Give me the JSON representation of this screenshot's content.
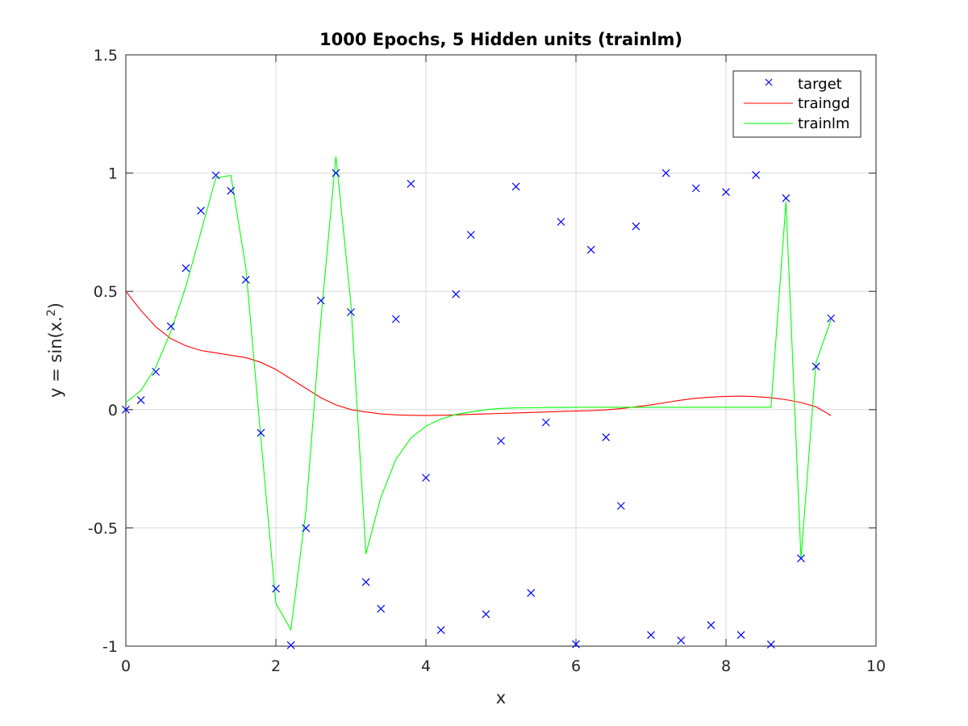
{
  "chart_data": {
    "type": "line",
    "title": "1000 Epochs, 5 Hidden units (trainlm)",
    "xlabel": "x",
    "ylabel": "y = sin(x.^2)",
    "xlim": [
      0,
      10
    ],
    "ylim": [
      -1,
      1.5
    ],
    "xticks": [
      0,
      2,
      4,
      6,
      8,
      10
    ],
    "yticks": [
      -1,
      -0.5,
      0,
      0.5,
      1,
      1.5
    ],
    "xtick_labels": [
      "0",
      "2",
      "4",
      "6",
      "8",
      "10"
    ],
    "ytick_labels": [
      "-1",
      "-0.5",
      "0",
      "0.5",
      "1",
      "1.5"
    ],
    "grid": true,
    "legend_position": "top-right",
    "series": [
      {
        "name": "target",
        "style": "marker-x",
        "color": "#0000ff",
        "x": [
          0,
          0.2,
          0.4,
          0.6,
          0.8,
          1.0,
          1.2,
          1.4,
          1.6,
          1.8,
          2.0,
          2.2,
          2.4,
          2.6,
          2.8,
          3.0,
          3.2,
          3.4,
          3.6,
          3.8,
          4.0,
          4.2,
          4.4,
          4.6,
          4.8,
          5.0,
          5.2,
          5.4,
          5.6,
          5.8,
          6.0,
          6.2,
          6.4,
          6.6,
          6.8,
          7.0,
          7.2,
          7.4,
          7.6,
          7.8,
          8.0,
          8.2,
          8.4,
          8.6,
          8.8,
          9.0,
          9.2,
          9.4
        ],
        "y": [
          0,
          0.04,
          0.16,
          0.352,
          0.598,
          0.841,
          0.991,
          0.925,
          0.549,
          -0.098,
          -0.757,
          -0.996,
          -0.501,
          0.461,
          1.0,
          0.412,
          -0.729,
          -0.842,
          0.383,
          0.955,
          -0.288,
          -0.932,
          0.488,
          0.739,
          -0.865,
          -0.132,
          0.943,
          -0.775,
          -0.054,
          0.794,
          -0.992,
          0.676,
          -0.117,
          -0.407,
          0.775,
          -0.953,
          1.0,
          -0.976,
          0.936,
          -0.911,
          0.92,
          -0.953,
          0.992,
          -0.993,
          0.894,
          -0.629,
          0.182,
          0.386
        ]
      },
      {
        "name": "traingd",
        "style": "line",
        "color": "#ff0000",
        "x": [
          0,
          0.2,
          0.4,
          0.6,
          0.8,
          1.0,
          1.2,
          1.4,
          1.6,
          1.8,
          2.0,
          2.2,
          2.4,
          2.6,
          2.8,
          3.0,
          3.2,
          3.4,
          3.6,
          3.8,
          4.0,
          4.2,
          4.4,
          4.6,
          4.8,
          5.0,
          5.2,
          5.4,
          5.6,
          5.8,
          6.0,
          6.2,
          6.4,
          6.6,
          6.8,
          7.0,
          7.2,
          7.4,
          7.6,
          7.8,
          8.0,
          8.2,
          8.4,
          8.6,
          8.8,
          9.0,
          9.2,
          9.4
        ],
        "y": [
          0.5,
          0.42,
          0.35,
          0.3,
          0.27,
          0.25,
          0.24,
          0.23,
          0.22,
          0.2,
          0.17,
          0.13,
          0.09,
          0.05,
          0.02,
          0.0,
          -0.01,
          -0.018,
          -0.022,
          -0.024,
          -0.025,
          -0.024,
          -0.022,
          -0.02,
          -0.018,
          -0.016,
          -0.014,
          -0.012,
          -0.01,
          -0.008,
          -0.006,
          -0.004,
          -0.001,
          0.004,
          0.012,
          0.02,
          0.03,
          0.04,
          0.048,
          0.053,
          0.056,
          0.057,
          0.055,
          0.05,
          0.042,
          0.03,
          0.012,
          -0.025
        ]
      },
      {
        "name": "trainlm",
        "style": "line",
        "color": "#00ff00",
        "x": [
          0,
          0.2,
          0.4,
          0.6,
          0.8,
          1.0,
          1.2,
          1.4,
          1.6,
          1.8,
          2.0,
          2.2,
          2.4,
          2.6,
          2.8,
          3.0,
          3.2,
          3.4,
          3.6,
          3.8,
          4.0,
          4.2,
          4.4,
          4.6,
          4.8,
          5.0,
          5.2,
          5.4,
          5.6,
          5.8,
          6.0,
          6.2,
          6.4,
          6.6,
          6.8,
          7.0,
          7.2,
          7.4,
          7.6,
          7.8,
          8.0,
          8.2,
          8.4,
          8.6,
          8.8,
          9.0,
          9.2,
          9.4
        ],
        "y": [
          0.03,
          0.08,
          0.18,
          0.33,
          0.52,
          0.75,
          0.98,
          0.99,
          0.6,
          -0.12,
          -0.82,
          -0.93,
          -0.43,
          0.38,
          1.07,
          0.45,
          -0.61,
          -0.37,
          -0.21,
          -0.12,
          -0.07,
          -0.04,
          -0.02,
          -0.01,
          0.0,
          0.005,
          0.007,
          0.008,
          0.009,
          0.009,
          0.01,
          0.01,
          0.01,
          0.01,
          0.01,
          0.01,
          0.01,
          0.01,
          0.01,
          0.01,
          0.01,
          0.01,
          0.01,
          0.01,
          0.88,
          -0.63,
          0.2,
          0.38
        ]
      }
    ]
  }
}
